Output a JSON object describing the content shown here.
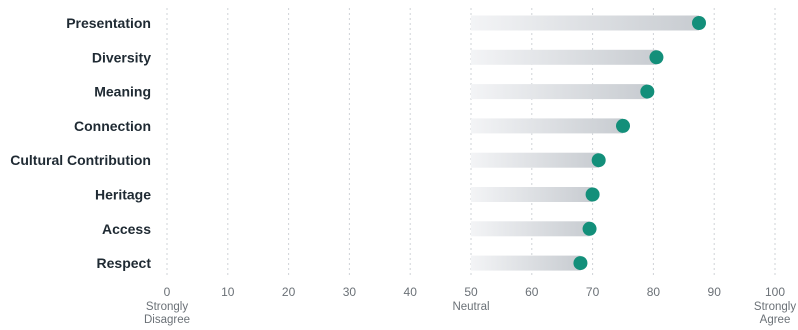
{
  "chart_data": {
    "type": "dot",
    "orientation": "horizontal",
    "categories": [
      "Presentation",
      "Diversity",
      "Meaning",
      "Connection",
      "Cultural Contribution",
      "Heritage",
      "Access",
      "Respect"
    ],
    "values": [
      87.5,
      80.5,
      79,
      75,
      71,
      70,
      69.5,
      68
    ],
    "baseline": 50,
    "xlim": [
      0,
      100
    ],
    "x_ticks": [
      0,
      10,
      20,
      30,
      40,
      50,
      60,
      70,
      80,
      90,
      100
    ],
    "x_tick_anchors": [
      {
        "value": 0,
        "lines": [
          "Strongly",
          "Disagree"
        ]
      },
      {
        "value": 50,
        "lines": [
          "Neutral"
        ]
      },
      {
        "value": 100,
        "lines": [
          "Strongly",
          "Agree"
        ]
      }
    ],
    "title": "",
    "xlabel": "",
    "ylabel": "",
    "grid": true,
    "colors": {
      "dot": "#138f7a",
      "bar_start": "#f3f4f6",
      "bar_end": "#c8ccd1"
    }
  }
}
